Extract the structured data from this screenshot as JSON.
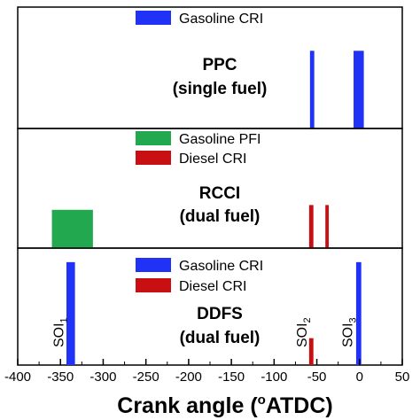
{
  "chart_data": {
    "type": "bar",
    "xlabel_main": "Crank angle (",
    "xlabel_deg": "o",
    "xlabel_unit": "ATDC)",
    "xlim": [
      -400,
      50
    ],
    "xticks": [
      "-400",
      "-350",
      "-300",
      "-250",
      "-200",
      "-150",
      "-100",
      "-50",
      "0",
      "50"
    ],
    "panels": [
      {
        "label_line1": "PPC",
        "label_line2": "(single fuel)",
        "legend": [
          {
            "name": "Gasoline CRI",
            "color": "#1f32f5"
          }
        ],
        "bars": [
          {
            "series": "Gasoline CRI",
            "start": -58,
            "end": -53,
            "height": 0.64
          },
          {
            "series": "Gasoline CRI",
            "start": -7,
            "end": 5,
            "height": 0.64
          }
        ],
        "annotations": []
      },
      {
        "label_line1": "RCCI",
        "label_line2": "(dual fuel)",
        "legend": [
          {
            "name": "Gasoline PFI",
            "color": "#22a84f"
          },
          {
            "name": "Diesel CRI",
            "color": "#c80f12"
          }
        ],
        "bars": [
          {
            "series": "Gasoline PFI",
            "start": -360,
            "end": -312,
            "height": 0.32
          },
          {
            "series": "Diesel CRI",
            "start": -59,
            "end": -54,
            "height": 0.36
          },
          {
            "series": "Diesel CRI",
            "start": -40,
            "end": -36,
            "height": 0.36
          }
        ],
        "annotations": []
      },
      {
        "label_line1": "DDFS",
        "label_line2": "(dual fuel)",
        "legend": [
          {
            "name": "Gasoline CRI",
            "color": "#1f32f5"
          },
          {
            "name": "Diesel CRI",
            "color": "#c80f12"
          }
        ],
        "bars": [
          {
            "series": "Gasoline CRI",
            "start": -343,
            "end": -333,
            "height": 0.88
          },
          {
            "series": "Diesel CRI",
            "start": -59,
            "end": -54,
            "height": 0.23
          },
          {
            "series": "Gasoline CRI",
            "start": -4,
            "end": 2,
            "height": 0.88
          }
        ],
        "annotations": [
          {
            "text": "SOI",
            "sub": "1",
            "x": -352
          },
          {
            "text": "SOI",
            "sub": "2",
            "x": -67
          },
          {
            "text": "SOI",
            "sub": "3",
            "x": -14
          }
        ]
      }
    ]
  }
}
